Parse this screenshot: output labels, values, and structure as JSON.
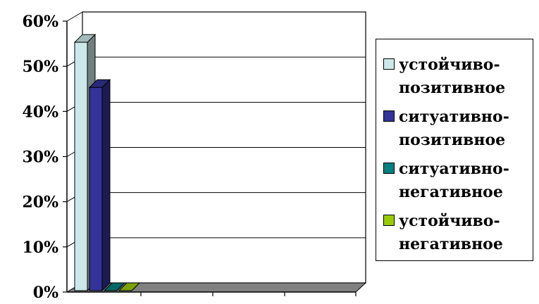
{
  "chart_data": {
    "type": "bar",
    "categories": [
      ""
    ],
    "series": [
      {
        "name": "устойчиво-\nпозитивное",
        "values": [
          55
        ],
        "color": "#cce8e8"
      },
      {
        "name": "ситуативно-\nпозитивное",
        "values": [
          45
        ],
        "color": "#333399"
      },
      {
        "name": "ситуативно-\nнегативное",
        "values": [
          0
        ],
        "color": "#008080"
      },
      {
        "name": "устойчиво-\nнегативное",
        "values": [
          0
        ],
        "color": "#99cc00"
      }
    ],
    "y_ticks": [
      "0%",
      "10%",
      "20%",
      "30%",
      "40%",
      "50%",
      "60%"
    ],
    "ylim": [
      0,
      60
    ],
    "grid": true,
    "legend_position": "right",
    "colors": {
      "floor": "#808080",
      "wall": "#ffffff",
      "grid": "#000000"
    }
  }
}
